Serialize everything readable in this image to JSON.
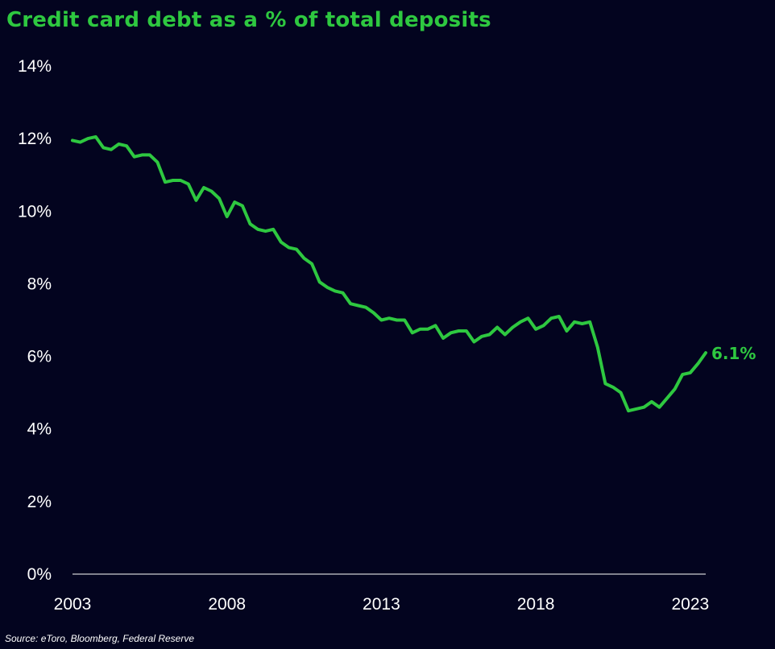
{
  "colors": {
    "background": "#03041f",
    "accent": "#2ec840",
    "text": "#ffffff"
  },
  "chart_data": {
    "type": "line",
    "title": "Credit card debt as a % of total deposits",
    "source": "Source: eToro, Bloomberg, Federal Reserve",
    "x_tick_labels": [
      "2003",
      "2008",
      "2013",
      "2018",
      "2023"
    ],
    "y_tick_labels": [
      "0%",
      "2%",
      "4%",
      "6%",
      "8%",
      "10%",
      "12%",
      "14%"
    ],
    "xlim": [
      2003,
      2023.5
    ],
    "ylim": [
      0,
      14
    ],
    "grid": false,
    "end_label": "6.1%",
    "series": [
      {
        "x": [
          2003.0,
          2003.25,
          2003.5,
          2003.75,
          2004.0,
          2004.25,
          2004.5,
          2004.75,
          2005.0,
          2005.25,
          2005.5,
          2005.75,
          2006.0,
          2006.25,
          2006.5,
          2006.75,
          2007.0,
          2007.25,
          2007.5,
          2007.75,
          2008.0,
          2008.25,
          2008.5,
          2008.75,
          2009.0,
          2009.25,
          2009.5,
          2009.75,
          2010.0,
          2010.25,
          2010.5,
          2010.75,
          2011.0,
          2011.25,
          2011.5,
          2011.75,
          2012.0,
          2012.25,
          2012.5,
          2012.75,
          2013.0,
          2013.25,
          2013.5,
          2013.75,
          2014.0,
          2014.25,
          2014.5,
          2014.75,
          2015.0,
          2015.25,
          2015.5,
          2015.75,
          2016.0,
          2016.25,
          2016.5,
          2016.75,
          2017.0,
          2017.25,
          2017.5,
          2017.75,
          2018.0,
          2018.25,
          2018.5,
          2018.75,
          2019.0,
          2019.25,
          2019.5,
          2019.75,
          2020.0,
          2020.25,
          2020.5,
          2020.75,
          2021.0,
          2021.25,
          2021.5,
          2021.75,
          2022.0,
          2022.25,
          2022.5,
          2022.75,
          2023.0,
          2023.25,
          2023.5
        ],
        "values": [
          11.95,
          11.9,
          12.0,
          12.05,
          11.75,
          11.7,
          11.85,
          11.8,
          11.5,
          11.55,
          11.55,
          11.35,
          10.8,
          10.85,
          10.85,
          10.75,
          10.3,
          10.65,
          10.55,
          10.35,
          9.85,
          10.25,
          10.15,
          9.65,
          9.5,
          9.45,
          9.5,
          9.15,
          9.0,
          8.95,
          8.7,
          8.55,
          8.05,
          7.9,
          7.8,
          7.75,
          7.45,
          7.4,
          7.35,
          7.2,
          7.0,
          7.05,
          7.0,
          7.0,
          6.65,
          6.75,
          6.75,
          6.85,
          6.5,
          6.65,
          6.7,
          6.7,
          6.4,
          6.55,
          6.6,
          6.8,
          6.6,
          6.8,
          6.95,
          7.05,
          6.75,
          6.85,
          7.05,
          7.1,
          6.7,
          6.95,
          6.9,
          6.95,
          6.25,
          5.25,
          5.15,
          5.0,
          4.5,
          4.55,
          4.6,
          4.75,
          4.6,
          4.85,
          5.1,
          5.5,
          5.55,
          5.8,
          6.1
        ]
      }
    ]
  }
}
